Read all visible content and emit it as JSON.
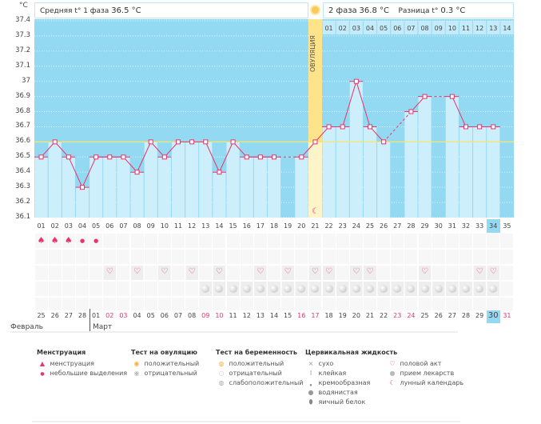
{
  "header": {
    "unit": "°C",
    "phase1_label": "Средняя t° 1 фаза",
    "phase1_value": "36.5 °C",
    "phase2_label": "2 фаза",
    "phase2_value": "36.8 °C",
    "diff_label": "Разница t°",
    "diff_value": "0.3 °C",
    "ovulation_label": "ОВУЛЯЦИЯ"
  },
  "colors": {
    "bg": "#94d9f2",
    "bar": "#cdeefb",
    "line": "#e8336b",
    "avg": "#f5e86a",
    "ovulation": "#fbe79a",
    "red_date": "#e8336b",
    "highlight": "#94d9f2"
  },
  "chart_data": {
    "type": "line",
    "title": "",
    "ylabel": "°C",
    "ylim": [
      36.1,
      37.4
    ],
    "yticks": [
      "37.4",
      "37.3",
      "37.2",
      "37.1",
      "37",
      "36.9",
      "36.8",
      "36.7",
      "36.6",
      "36.5",
      "36.4",
      "36.3",
      "36.2",
      "36.1"
    ],
    "x": [
      "01",
      "02",
      "03",
      "04",
      "05",
      "06",
      "07",
      "08",
      "09",
      "10",
      "11",
      "12",
      "13",
      "14",
      "15",
      "16",
      "17",
      "18",
      "19",
      "20",
      "21",
      "22",
      "23",
      "24",
      "25",
      "26",
      "27",
      "28",
      "29",
      "30",
      "31",
      "32",
      "33",
      "34",
      "35"
    ],
    "series": [
      {
        "name": "temperature",
        "values": [
          36.5,
          36.6,
          36.5,
          36.3,
          36.5,
          36.5,
          36.5,
          36.4,
          36.6,
          36.5,
          36.6,
          36.6,
          36.6,
          36.4,
          36.6,
          36.5,
          36.5,
          36.5,
          null,
          36.5,
          36.6,
          36.7,
          36.7,
          37.0,
          36.7,
          36.6,
          null,
          36.8,
          36.9,
          null,
          36.9,
          36.7,
          36.7,
          36.7,
          null
        ]
      }
    ],
    "cover_line": 36.6,
    "ovulation_day": 21,
    "phase2_days": [
      "01",
      "02",
      "03",
      "04",
      "05",
      "06",
      "07",
      "08",
      "09",
      "10",
      "11",
      "12",
      "13",
      "14"
    ]
  },
  "rows": {
    "menstruation": {
      "1": "big",
      "2": "big",
      "3": "big",
      "4": "small",
      "5": "small"
    },
    "intercourse": [
      6,
      8,
      10,
      12,
      14,
      17,
      19,
      21,
      22,
      24,
      25,
      29,
      33,
      34
    ],
    "pills": [
      13,
      14,
      15,
      16,
      17,
      18,
      19,
      20,
      21,
      22,
      23,
      24,
      25,
      26,
      27,
      28,
      29,
      30,
      31,
      32,
      33,
      34
    ],
    "dates": [
      "25",
      "26",
      "27",
      "28",
      "01",
      "02",
      "03",
      "04",
      "05",
      "06",
      "07",
      "08",
      "09",
      "10",
      "11",
      "12",
      "13",
      "14",
      "15",
      "16",
      "17",
      "18",
      "19",
      "20",
      "21",
      "22",
      "23",
      "24",
      "25",
      "26",
      "27",
      "28",
      "29",
      "30",
      "31"
    ],
    "red_dates": [
      6,
      7,
      13,
      14,
      20,
      21,
      27,
      28,
      35
    ],
    "today_col": 34
  },
  "months": {
    "feb": "Февраль",
    "mar": "Март"
  },
  "legend": {
    "menstruation": {
      "title": "Менструация",
      "items": [
        "менструация",
        "небольшие выделения"
      ]
    },
    "ovtest": {
      "title": "Тест на овуляцию",
      "items": [
        "положительный",
        "отрицательный"
      ]
    },
    "pregtest": {
      "title": "Тест на беременность",
      "items": [
        "положительный",
        "отрицательный",
        "слабоположительный"
      ]
    },
    "cervical": {
      "title": "Цервикальная жидкость",
      "items": [
        "сухо",
        "клейкая",
        "кремообразная",
        "водянистая",
        "яичный белок"
      ]
    },
    "other": {
      "items": [
        "половой акт",
        "прием лекарств",
        "лунный календарь"
      ]
    }
  }
}
